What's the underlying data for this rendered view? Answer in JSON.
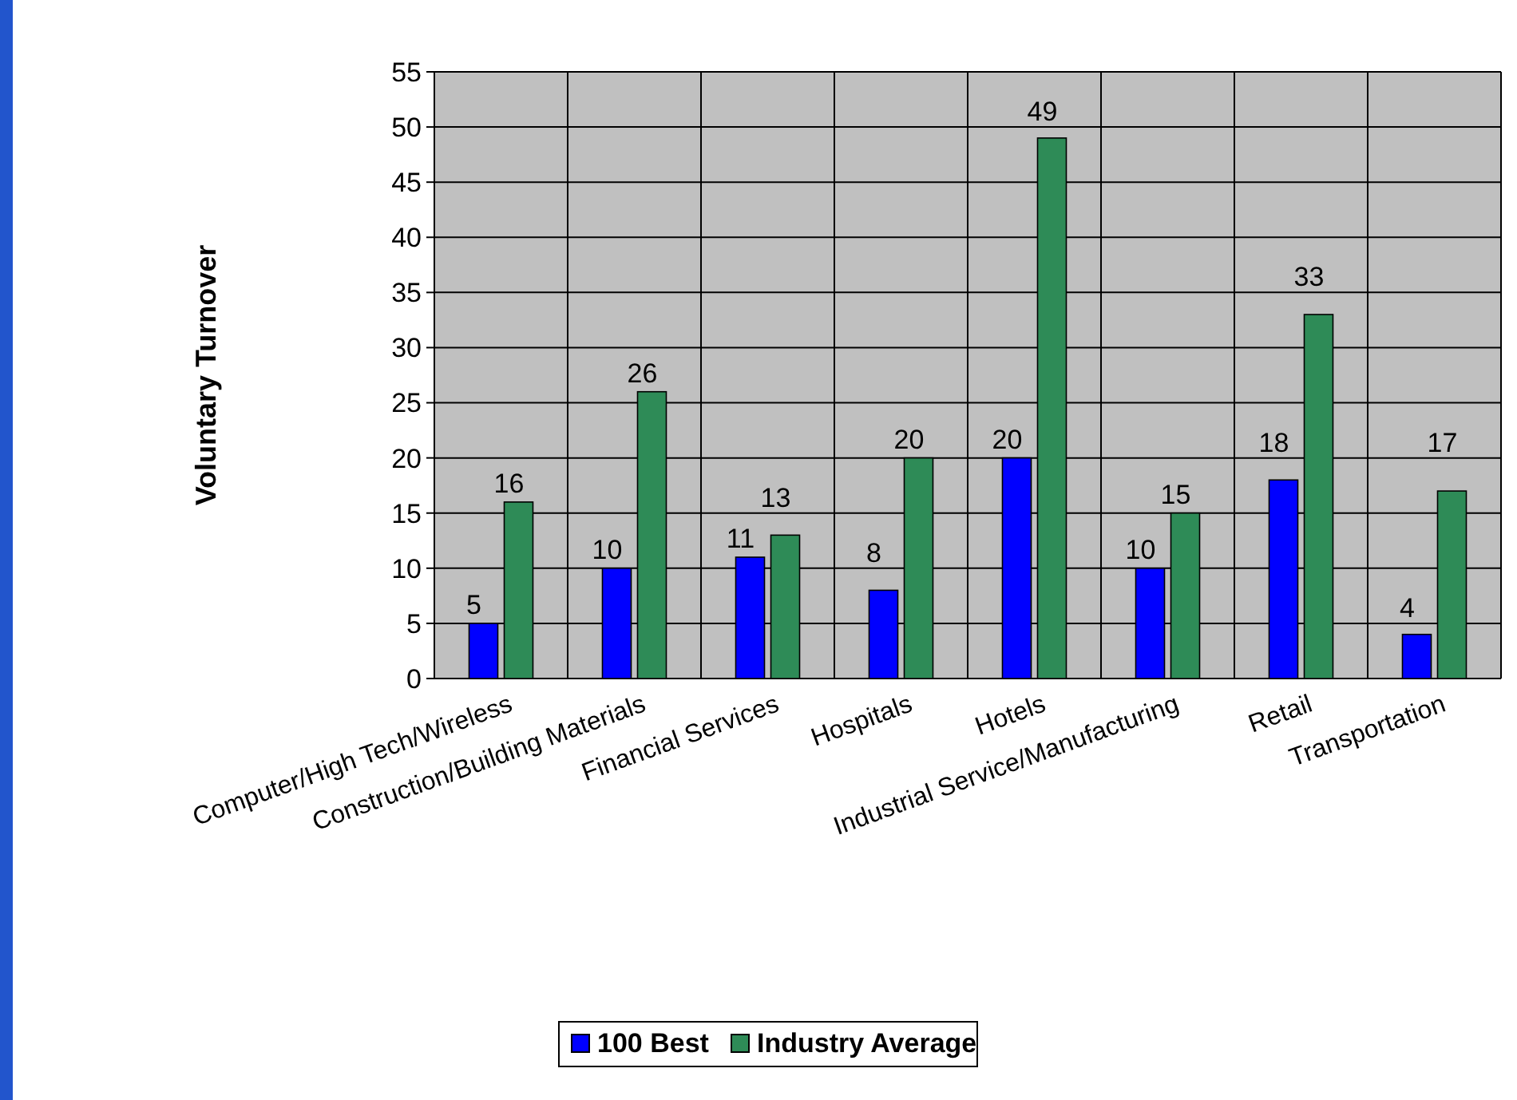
{
  "chart_data": {
    "type": "bar",
    "ylabel": "Voluntary Turnover",
    "categories": [
      "Computer/High Tech/Wireless",
      "Construction/Building Materials",
      "Financial Services",
      "Hospitals",
      "Hotels",
      "Industrial Service/Manufacturing",
      "Retail",
      "Transportation"
    ],
    "series": [
      {
        "name": "100 Best",
        "color": "#0000ff",
        "values": [
          5,
          10,
          11,
          8,
          20,
          10,
          18,
          4
        ]
      },
      {
        "name": "Industry Average",
        "color": "#2e8b57",
        "values": [
          16,
          26,
          13,
          20,
          49,
          15,
          33,
          17
        ]
      }
    ],
    "ylim": [
      0,
      55
    ],
    "yticks": [
      0,
      5,
      10,
      15,
      20,
      25,
      30,
      35,
      40,
      45,
      50,
      55
    ],
    "grid": true,
    "data_labels": true,
    "legend": "bottom"
  }
}
